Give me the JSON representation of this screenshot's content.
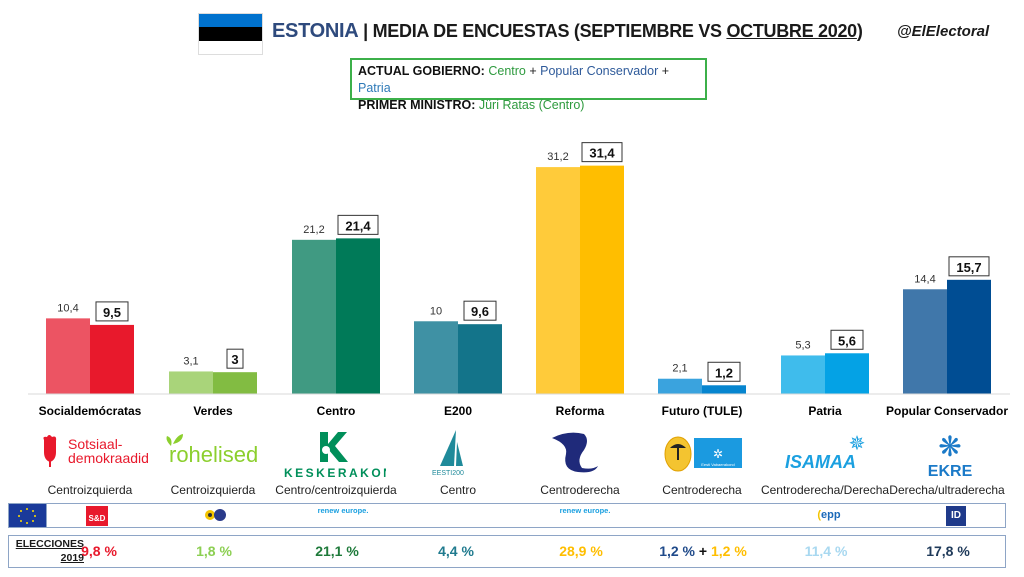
{
  "header": {
    "country": "ESTONIA",
    "separator": "|",
    "subtitle_prefix": "MEDIA DE ENCUESTAS (SEPTIEMBRE VS ",
    "subtitle_underlined": "OCTUBRE 2020",
    "subtitle_suffix": ")",
    "handle": "@ElElectoral",
    "flag_colors": [
      "#0072ce",
      "#000000",
      "#ffffff"
    ]
  },
  "government": {
    "label_gov": "ACTUAL GOBIERNO:",
    "gov_parts": [
      {
        "text": "Centro",
        "color": "#2e9a3e"
      },
      {
        "text": " + ",
        "color": "#222222"
      },
      {
        "text": "Popular Conservador",
        "color": "#2e5a9a"
      },
      {
        "text": " + ",
        "color": "#222222"
      },
      {
        "text": "Patria",
        "color": "#2e7ab8"
      }
    ],
    "label_pm": "PRIMER MINISTRO:",
    "pm": "Jüri Ratas (Centro)",
    "pm_color": "#2e9a3e",
    "border_color": "#3cb04a"
  },
  "chart_data": {
    "type": "bar",
    "title": "ESTONIA | MEDIA DE ENCUESTAS (SEPTIEMBRE VS OCTUBRE 2020)",
    "xlabel": "",
    "ylabel": "",
    "ylim": [
      0,
      33
    ],
    "grid": false,
    "legend": "none",
    "categories": [
      "Socialdemócratas",
      "Verdes",
      "Centro",
      "E200",
      "Reforma",
      "Futuro (TULE)",
      "Patria",
      "Popular Conservador"
    ],
    "series": [
      {
        "name": "Septiembre 2020",
        "values": [
          10.4,
          3.1,
          21.2,
          10,
          31.2,
          2.1,
          5.3,
          14.4
        ],
        "labels": [
          "10,4",
          "3,1",
          "21,2",
          "10",
          "31,2",
          "2,1",
          "5,3",
          "14,4"
        ],
        "colors": [
          "#ec5463",
          "#a9d47a",
          "#409a82",
          "#3f91a4",
          "#ffcb3a",
          "#3aa3de",
          "#3fbcec",
          "#4077aa"
        ]
      },
      {
        "name": "Octubre 2020",
        "values": [
          9.5,
          3,
          21.4,
          9.6,
          31.4,
          1.2,
          5.6,
          15.7
        ],
        "labels": [
          "9,5",
          "3",
          "21,4",
          "9,6",
          "31,4",
          "1,2",
          "5,6",
          "15,7"
        ],
        "colors": [
          "#e8192c",
          "#82bc42",
          "#007a58",
          "#13748a",
          "#ffbe00",
          "#0685cf",
          "#04a2e5",
          "#004d93"
        ]
      }
    ]
  },
  "parties": [
    {
      "logo": "Sotsiaal-\ndemokraadid",
      "logo_name": "sotsiaaldemokraadid-rose-logo",
      "ideology": "Centroizquierda",
      "result_2019": "9,8 %",
      "result_color": "#e8192c",
      "eu_group": "S&D"
    },
    {
      "logo": "rohelised",
      "logo_name": "rohelised-logo",
      "ideology": "Centroizquierda",
      "result_2019": "1,8 %",
      "result_color": "#8ccf52",
      "eu_group": "Greens/EFA"
    },
    {
      "logo": "KESKERAKOND",
      "logo_name": "keskerakond-logo",
      "ideology": "Centro/centroizquierda",
      "result_2019": "21,1 %",
      "result_color": "#1e7a3a",
      "eu_group": "renew europe."
    },
    {
      "logo": "EESTI200",
      "logo_name": "eesti200-sail-logo",
      "ideology": "Centro",
      "result_2019": "4,4 %",
      "result_color": "#1f7a8e",
      "eu_group": ""
    },
    {
      "logo": "",
      "logo_name": "reformierakond-squirrel-logo",
      "ideology": "Centroderecha",
      "result_2019": "28,9 %",
      "result_color": "#ffbe00",
      "eu_group": "renew europe."
    },
    {
      "logo": "Eesti Vabaerakond",
      "logo_name": "tule-logo",
      "ideology": "Centroderecha",
      "result_2019_parts": [
        {
          "text": "1,2 %",
          "color": "#1f4a8a"
        },
        {
          "text": " + ",
          "color": "#111111"
        },
        {
          "text": "1,2 %",
          "color": "#ffbe00"
        }
      ],
      "eu_group": ""
    },
    {
      "logo": "ISAMAA",
      "logo_name": "isamaa-logo",
      "ideology": "Centroderecha/Derecha",
      "result_2019": "11,4 %",
      "result_color": "#a8d8f0",
      "eu_group": "epp"
    },
    {
      "logo": "EKRE",
      "logo_name": "ekre-cornflower-logo",
      "ideology": "Derecha/ultraderecha",
      "result_2019": "17,8 %",
      "result_color": "#1f3a5a",
      "eu_group": "ID"
    }
  ],
  "elections": {
    "label_line1": "ELECCIONES",
    "label_line2": "2019"
  }
}
